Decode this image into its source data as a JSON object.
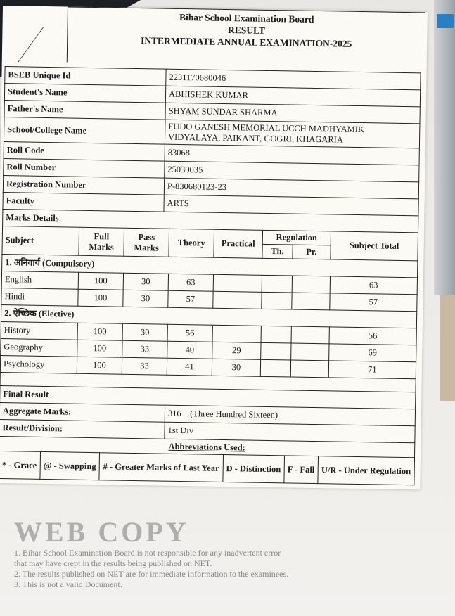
{
  "header": {
    "board": "Bihar School Examination Board",
    "result": "RESULT",
    "exam": "INTERMEDIATE ANNUAL EXAMINATION-2025"
  },
  "student": [
    {
      "label": "BSEB Unique Id",
      "value": "2231170680046"
    },
    {
      "label": "Student's Name",
      "value": "ABHISHEK KUMAR"
    },
    {
      "label": "Father's Name",
      "value": "SHYAM SUNDAR SHARMA"
    },
    {
      "label": "School/College Name",
      "value": "FUDO GANESH MEMORIAL UCCH MADHYAMIK VIDYALAYA, PAIKANT, GOGRI, KHAGARIA"
    },
    {
      "label": "Roll Code",
      "value": "83068"
    },
    {
      "label": "Roll Number",
      "value": "25030035"
    },
    {
      "label": "Registration Number",
      "value": "P-830680123-23"
    },
    {
      "label": "Faculty",
      "value": "ARTS"
    }
  ],
  "marks": {
    "title": "Marks Details",
    "headers": {
      "subject": "Subject",
      "full": "Full Marks",
      "pass": "Pass Marks",
      "theory": "Theory",
      "practical": "Practical",
      "regulation": "Regulation",
      "th": "Th.",
      "pr": "Pr.",
      "total": "Subject Total"
    },
    "compulsory_label": "1. अनिवार्य (Compulsory)",
    "compulsory": [
      {
        "subject": "English",
        "full": "100",
        "pass": "30",
        "theory": "63",
        "practical": "",
        "total": "63"
      },
      {
        "subject": "Hindi",
        "full": "100",
        "pass": "30",
        "theory": "57",
        "practical": "",
        "total": "57"
      }
    ],
    "elective_label": "2. ऐच्छिक (Elective)",
    "elective": [
      {
        "subject": "History",
        "full": "100",
        "pass": "30",
        "theory": "56",
        "practical": "",
        "total": "56"
      },
      {
        "subject": "Geography",
        "full": "100",
        "pass": "33",
        "theory": "40",
        "practical": "29",
        "total": "69"
      },
      {
        "subject": "Psychology",
        "full": "100",
        "pass": "33",
        "theory": "41",
        "practical": "30",
        "total": "71"
      }
    ]
  },
  "final": {
    "title": "Final Result",
    "aggregate_label": "Aggregate Marks:",
    "aggregate_value": "316    (Three Hundred Sixteen)",
    "division_label": "Result/Division:",
    "division_value": "1st Div"
  },
  "abbreviations": {
    "title": "Abbreviations Used:",
    "items": [
      "* - Grace",
      "@ - Swapping",
      "# - Greater Marks of Last Year",
      "D - Distinction",
      "F - Fail",
      "U/R - Under Regulation"
    ]
  },
  "watermark": {
    "text": "WEB COPY",
    "lines": [
      "1. Bihar School Examination Board is not responsible for any inadvertent error",
      "that may have crept in the results being published on NET.",
      "2. The results published on NET are for immediate information to the examinees.",
      "3. This is not a valid Document."
    ]
  }
}
